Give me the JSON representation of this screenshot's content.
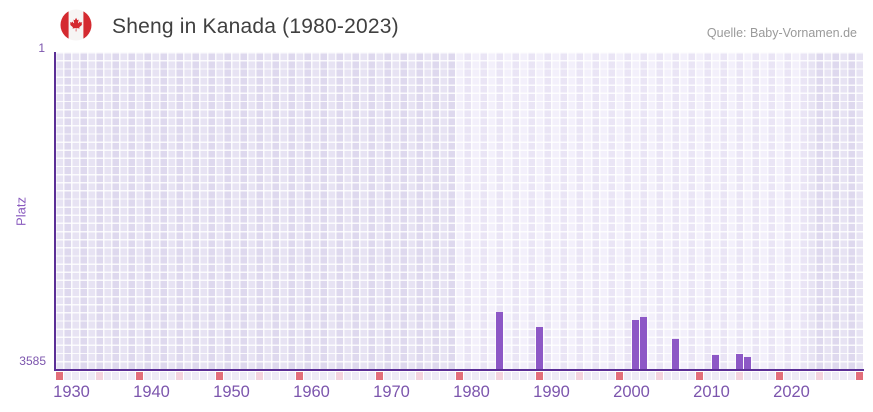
{
  "header": {
    "title": "Sheng in Kanada (1980-2023)",
    "source": "Quelle: Baby-Vornamen.de",
    "flag_icon": "canada-flag-icon"
  },
  "chart_data": {
    "type": "bar",
    "title": "Sheng in Kanada (1980-2023)",
    "xlabel": "",
    "ylabel": "Platz",
    "y_axis": {
      "top_label": "1",
      "bottom_label": "3585",
      "min": 1,
      "max": 3585,
      "inverted": true,
      "note": "rank 1 at top, bars rise from bottom; bar top marks the rank value"
    },
    "x_axis": {
      "start": 1928,
      "end": 2028,
      "tick_labels": [
        "1930",
        "1940",
        "1950",
        "1960",
        "1970",
        "1980",
        "1990",
        "2000",
        "2010",
        "2020"
      ],
      "minor_markers": {
        "interval_years": 5,
        "red_years_end_in": 8,
        "pink_years_end_in": 3
      }
    },
    "series": [
      {
        "name": "Platz",
        "points": [
          {
            "year": 1983,
            "rank": 3021
          },
          {
            "year": 1988,
            "rank": 3185
          },
          {
            "year": 2000,
            "rank": 3110
          },
          {
            "year": 2001,
            "rank": 3080
          },
          {
            "year": 2005,
            "rank": 3332
          },
          {
            "year": 2010,
            "rank": 3520
          },
          {
            "year": 2013,
            "rank": 3508
          },
          {
            "year": 2014,
            "rank": 3542
          }
        ]
      }
    ],
    "highlight_band": {
      "from_year": 1978,
      "to_year": 2022
    },
    "layout": {
      "grid": true,
      "legend": false
    },
    "colors": {
      "bar": "#8d58c6",
      "axis_line": "#5b2f96",
      "band_dark": "#e7e3f3",
      "band_light": "#f3f0fb",
      "marker_red": "#e26e7a",
      "marker_pink": "#f3d3de",
      "marker_default": "#edeaf6",
      "tick_label": "#7c55ad",
      "axis_title": "#8a5bbf",
      "title_text": "#404040",
      "source_text": "#9a9a9a",
      "flag_red": "#d42a30"
    }
  }
}
